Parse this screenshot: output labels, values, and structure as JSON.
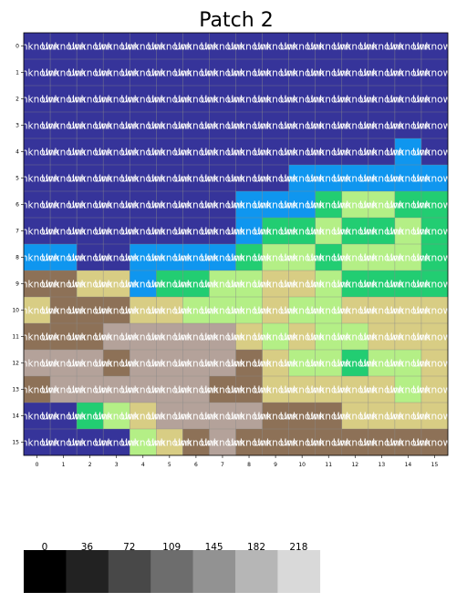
{
  "chart_data": {
    "type": "heatmap",
    "title": "Patch 2",
    "x_ticks": [
      "0",
      "1",
      "2",
      "3",
      "4",
      "5",
      "6",
      "7",
      "8",
      "9",
      "10",
      "11",
      "12",
      "13",
      "14",
      "15"
    ],
    "y_ticks": [
      "0",
      "1",
      "2",
      "3",
      "4",
      "5",
      "6",
      "7",
      "8",
      "9",
      "10",
      "11",
      "12",
      "13",
      "14",
      "15"
    ],
    "cell_label": "Unknown",
    "palette": {
      "N": "#36349a",
      "B": "#0f96ef",
      "G": "#22cd72",
      "L": "#b4ef86",
      "K": "#d8cd84",
      "T": "#8d7157",
      "P": "#b4a29a"
    },
    "grid": [
      "NNNNNNNNNNNNNNNN",
      "NNNNNNNNNNNNNNNN",
      "NNNNNNNNNNNNNNNN",
      "NNNNNNNNNNNNNNNN",
      "NNNNNNNNNNNNNNBN",
      "NNNNNNNNNNBBBBBB",
      "NNNNNNNNBBBGLLGG",
      "NNNNNNNNBGGLGGLG",
      "BBNNBBBBGLLGLLLG",
      "TTKKBGGLLKKLGGGG",
      "KTTTKKLLLKLLKKKK",
      "TTTPPPPPKLKLLKKK",
      "PPPTPPPPTKLLGLLK",
      "TPPPPPPTTKKKKKLK",
      "NNGLKPPPPTTTKKKK",
      "NNNNLKTPTTTTTTTT"
    ],
    "colorbar": {
      "ticks": [
        "0",
        "36",
        "72",
        "109",
        "145",
        "182",
        "218"
      ],
      "colors": [
        "#000000",
        "#222222",
        "#484848",
        "#6d6d6d",
        "#929292",
        "#b6b6b6",
        "#d9d9d9"
      ]
    }
  }
}
